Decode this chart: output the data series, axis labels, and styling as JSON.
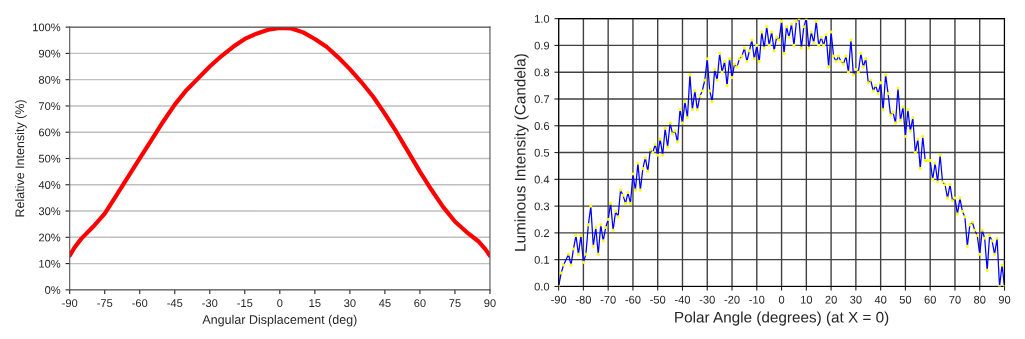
{
  "chart_data": [
    {
      "type": "line",
      "xlabel": "Angular Displacement (deg)",
      "ylabel": "Relative Intensity (%)",
      "x": [
        -90,
        -88,
        -85,
        -80,
        -75,
        -70,
        -65,
        -60,
        -55,
        -50,
        -45,
        -40,
        -35,
        -30,
        -25,
        -20,
        -15,
        -10,
        -5,
        0,
        5,
        10,
        15,
        20,
        25,
        30,
        35,
        40,
        45,
        50,
        55,
        60,
        65,
        70,
        75,
        80,
        85,
        88,
        90
      ],
      "series": [
        {
          "color": "#ff0000",
          "values": [
            13,
            16,
            19.5,
            24,
            29,
            36,
            43,
            50,
            57,
            64,
            70.5,
            76,
            80.5,
            85,
            89,
            92.5,
            95.5,
            97.5,
            99,
            99.7,
            99.5,
            98,
            95.5,
            92.5,
            88.5,
            84,
            79,
            73.5,
            67,
            60,
            52.5,
            45,
            38,
            31.5,
            26,
            22,
            18.5,
            15.5,
            13
          ]
        }
      ],
      "xlim": [
        -90,
        90
      ],
      "xticks": [
        -90,
        -75,
        -60,
        -45,
        -30,
        -15,
        0,
        15,
        30,
        45,
        60,
        75,
        90
      ],
      "ylim": [
        0,
        100
      ],
      "yticks": [
        {
          "value": 0,
          "label": "0%"
        },
        {
          "value": 10,
          "label": "10%"
        },
        {
          "value": 20,
          "label": "20%"
        },
        {
          "value": 30,
          "label": "30%"
        },
        {
          "value": 40,
          "label": "40%"
        },
        {
          "value": 50,
          "label": "50%"
        },
        {
          "value": 60,
          "label": "60%"
        },
        {
          "value": 70,
          "label": "70%"
        },
        {
          "value": 80,
          "label": "80%"
        },
        {
          "value": 90,
          "label": "90%"
        },
        {
          "value": 100,
          "label": "100%"
        }
      ],
      "grid": "y",
      "marker": "none",
      "line_style": "solid"
    },
    {
      "type": "line",
      "xlabel": "Polar Angle (degrees) (at X = 0)",
      "ylabel": "Luminous Intensity (Candela)",
      "x": [
        -90,
        -89,
        -88,
        -86,
        -85,
        -84,
        -83,
        -82,
        -81,
        -80,
        -79,
        -78,
        -77,
        -76,
        -75,
        -74,
        -73,
        -72,
        -71,
        -70,
        -69,
        -68,
        -67,
        -66,
        -65,
        -64,
        -63,
        -62,
        -61,
        -60,
        -59,
        -58,
        -57,
        -56,
        -55,
        -54,
        -53,
        -52,
        -51,
        -50,
        -49,
        -48,
        -47,
        -46,
        -45,
        -44,
        -43,
        -42,
        -41,
        -40,
        -39,
        -38,
        -37,
        -36,
        -35,
        -34,
        -33,
        -32,
        -31,
        -30,
        -29,
        -28,
        -27,
        -26,
        -25,
        -24,
        -23,
        -22,
        -21,
        -20,
        -19,
        -18,
        -17,
        -16,
        -15,
        -14,
        -13,
        -12,
        -11,
        -10,
        -9,
        -8,
        -7,
        -6,
        -5,
        -4,
        -3,
        -2,
        -1,
        0,
        1,
        2,
        3,
        4,
        5,
        6,
        7,
        8,
        9,
        10,
        11,
        12,
        13,
        14,
        15,
        16,
        17,
        18,
        19,
        20,
        21,
        22,
        23,
        24,
        25,
        26,
        27,
        28,
        29,
        30,
        31,
        32,
        33,
        34,
        35,
        36,
        37,
        38,
        39,
        40,
        41,
        42,
        43,
        44,
        45,
        46,
        47,
        48,
        49,
        50,
        51,
        52,
        53,
        54,
        55,
        56,
        57,
        58,
        59,
        60,
        61,
        62,
        63,
        64,
        65,
        66,
        67,
        68,
        69,
        70,
        71,
        72,
        73,
        74,
        75,
        76,
        77,
        78,
        79,
        80,
        81,
        82,
        83,
        84,
        85,
        86,
        87,
        88,
        89,
        90
      ],
      "series": [
        {
          "type": "line",
          "color": "#0000ff",
          "values": [
            0,
            0.05,
            0.08,
            0.12,
            0.08,
            0.14,
            0.19,
            0.12,
            0.19,
            0.09,
            0.12,
            0.23,
            0.3,
            0.15,
            0.22,
            0.12,
            0.23,
            0.17,
            0.22,
            0.25,
            0.31,
            0.21,
            0.28,
            0.26,
            0.36,
            0.34,
            0.31,
            0.35,
            0.31,
            0.42,
            0.36,
            0.46,
            0.36,
            0.44,
            0.48,
            0.43,
            0.51,
            0.5,
            0.53,
            0.49,
            0.55,
            0.49,
            0.59,
            0.52,
            0.61,
            0.57,
            0.58,
            0.54,
            0.66,
            0.61,
            0.69,
            0.63,
            0.79,
            0.66,
            0.73,
            0.66,
            0.71,
            0.73,
            0.77,
            0.85,
            0.73,
            0.69,
            0.81,
            0.77,
            0.87,
            0.8,
            0.84,
            0.75,
            0.85,
            0.78,
            0.83,
            0.82,
            0.85,
            0.86,
            0.89,
            0.84,
            0.88,
            0.92,
            0.85,
            0.9,
            0.84,
            0.95,
            0.89,
            0.97,
            0.9,
            0.95,
            0.88,
            0.93,
            0.92,
            0.99,
            0.87,
            0.97,
            0.93,
            0.98,
            0.9,
            0.99,
            1.0,
            0.89,
            0.97,
            1.0,
            0.89,
            0.95,
            0.91,
            0.99,
            0.9,
            0.93,
            0.9,
            0.94,
            0.82,
            0.95,
            0.86,
            0.84,
            0.86,
            0.84,
            0.83,
            0.86,
            0.8,
            0.92,
            0.79,
            0.81,
            0.8,
            0.87,
            0.82,
            0.85,
            0.76,
            0.77,
            0.73,
            0.75,
            0.72,
            0.76,
            0.66,
            0.79,
            0.72,
            0.64,
            0.65,
            0.61,
            0.74,
            0.62,
            0.67,
            0.56,
            0.66,
            0.58,
            0.63,
            0.5,
            0.55,
            0.44,
            0.56,
            0.47,
            0.47,
            0.47,
            0.4,
            0.46,
            0.39,
            0.49,
            0.39,
            0.38,
            0.33,
            0.38,
            0.32,
            0.33,
            0.27,
            0.33,
            0.28,
            0.26,
            0.15,
            0.23,
            0.24,
            0.21,
            0.19,
            0.12,
            0.21,
            0.18,
            0.06,
            0.19,
            0.17,
            0.12,
            0.18,
            0,
            0.08,
            0
          ]
        },
        {
          "type": "scatter",
          "color": "#ffff00",
          "values": [
            0,
            0.05,
            0.08,
            0.12,
            0.08,
            0.14,
            0.19,
            0.12,
            0.19,
            0.09,
            0.12,
            0.23,
            0.3,
            0.15,
            0.22,
            0.12,
            0.23,
            0.17,
            0.22,
            0.25,
            0.31,
            0.21,
            0.28,
            0.26,
            0.36,
            0.34,
            0.31,
            0.35,
            0.31,
            0.42,
            0.36,
            0.46,
            0.36,
            0.44,
            0.48,
            0.43,
            0.51,
            0.5,
            0.53,
            0.49,
            0.55,
            0.49,
            0.59,
            0.52,
            0.61,
            0.57,
            0.58,
            0.54,
            0.66,
            0.61,
            0.69,
            0.63,
            0.79,
            0.66,
            0.73,
            0.66,
            0.71,
            0.73,
            0.77,
            0.85,
            0.73,
            0.69,
            0.81,
            0.77,
            0.87,
            0.8,
            0.84,
            0.75,
            0.85,
            0.78,
            0.83,
            0.82,
            0.85,
            0.86,
            0.89,
            0.84,
            0.88,
            0.92,
            0.85,
            0.9,
            0.84,
            0.95,
            0.89,
            0.97,
            0.9,
            0.95,
            0.88,
            0.93,
            0.92,
            0.99,
            0.87,
            0.97,
            0.93,
            0.98,
            0.9,
            0.99,
            1.0,
            0.89,
            0.97,
            1.0,
            0.89,
            0.95,
            0.91,
            0.99,
            0.9,
            0.93,
            0.9,
            0.94,
            0.82,
            0.95,
            0.86,
            0.84,
            0.86,
            0.84,
            0.83,
            0.86,
            0.8,
            0.92,
            0.79,
            0.81,
            0.8,
            0.87,
            0.82,
            0.85,
            0.76,
            0.77,
            0.73,
            0.75,
            0.72,
            0.76,
            0.66,
            0.79,
            0.72,
            0.64,
            0.65,
            0.61,
            0.74,
            0.62,
            0.67,
            0.56,
            0.66,
            0.58,
            0.63,
            0.5,
            0.55,
            0.44,
            0.56,
            0.47,
            0.47,
            0.47,
            0.4,
            0.46,
            0.39,
            0.49,
            0.39,
            0.38,
            0.33,
            0.38,
            0.32,
            0.33,
            0.27,
            0.33,
            0.28,
            0.26,
            0.15,
            0.23,
            0.24,
            0.21,
            0.19,
            0.12,
            0.21,
            0.18,
            0.06,
            0.19,
            0.17,
            0.12,
            0.18,
            0,
            0.08,
            0
          ]
        }
      ],
      "xlim": [
        -90,
        90
      ],
      "xticks": [
        -90,
        -80,
        -70,
        -60,
        -50,
        -40,
        -30,
        -20,
        -10,
        0,
        10,
        20,
        30,
        40,
        50,
        60,
        70,
        80,
        90
      ],
      "ylim": [
        0,
        1
      ],
      "yticks": [
        {
          "value": 0,
          "label": "0.0"
        },
        {
          "value": 0.1,
          "label": "0.1"
        },
        {
          "value": 0.2,
          "label": "0.2"
        },
        {
          "value": 0.3,
          "label": "0.3"
        },
        {
          "value": 0.4,
          "label": "0.4"
        },
        {
          "value": 0.5,
          "label": "0.5"
        },
        {
          "value": 0.6,
          "label": "0.6"
        },
        {
          "value": 0.7,
          "label": "0.7"
        },
        {
          "value": 0.8,
          "label": "0.8"
        },
        {
          "value": 0.9,
          "label": "0.9"
        },
        {
          "value": 1.0,
          "label": "1.0"
        }
      ],
      "grid": true,
      "line_style": "solid"
    }
  ]
}
